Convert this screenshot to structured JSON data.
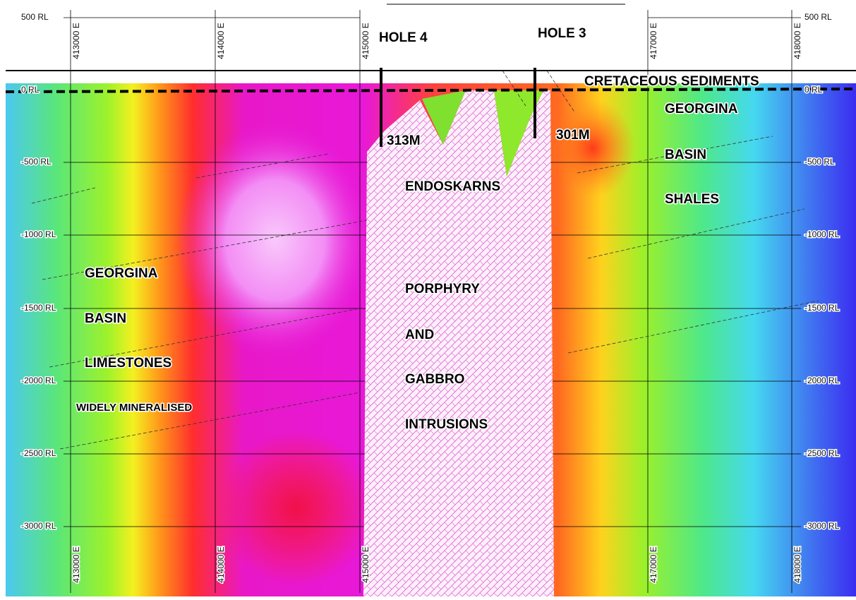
{
  "section": {
    "rl_labels": [
      "500 RL",
      "0 RL",
      "-500 RL",
      "-1000 RL",
      "-1500 RL",
      "-2000 RL",
      "-2500 RL",
      "-3000 RL"
    ],
    "easting_labels": [
      "413000 E",
      "414000 E",
      "415000 E",
      "417000 E",
      "418000 E"
    ],
    "holes": [
      {
        "name": "HOLE 4",
        "depth": "313M"
      },
      {
        "name": "HOLE 3",
        "depth": "301M"
      }
    ],
    "units": {
      "top": "CRETACEOUS SEDIMENTS",
      "right": [
        "GEORGINA",
        "BASIN",
        "SHALES"
      ],
      "left": [
        "GEORGINA",
        "BASIN",
        "LIMESTONES"
      ],
      "left_note": "WIDELY MINERALISED",
      "intrusion_top": "ENDOSKARNS",
      "intrusion": [
        "PORPHYRY",
        "AND",
        "GABBRO",
        "INTRUSIONS"
      ]
    }
  }
}
